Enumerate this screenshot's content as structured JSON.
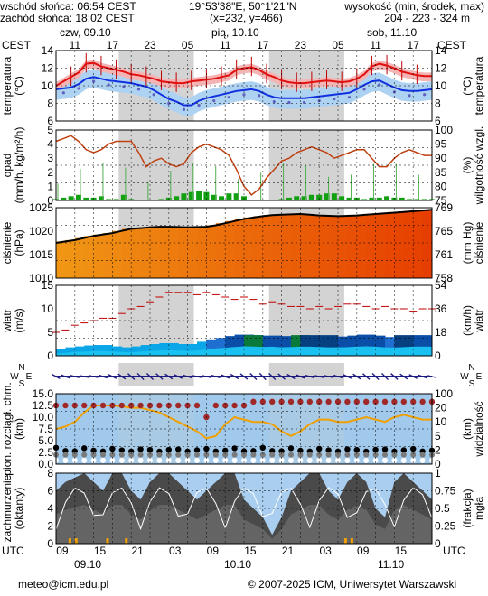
{
  "header": {
    "sunrise": "wschód słońca: 06:54 CEST",
    "sunset": "zachód słońca: 18:02 CEST",
    "coords": "19°53'38\"E, 50°1'21\"N",
    "grid": "(x=232, y=466)",
    "height_title": "wysokość (min, środek, max)",
    "height_values": "204 - 223 - 324 m"
  },
  "timezone_top": "CEST",
  "timezone_bottom": "UTC",
  "days_top": [
    "czw, 09.10",
    "pią, 10.10",
    "sob, 11.10"
  ],
  "days_bottom": [
    "09.10",
    "10.10",
    "11.10"
  ],
  "hours_top": [
    "11",
    "17",
    "23",
    "05",
    "11",
    "17",
    "23",
    "05",
    "11",
    "17"
  ],
  "hours_bottom": [
    "09",
    "15",
    "21",
    "03",
    "09",
    "15",
    "21",
    "03",
    "09",
    "15"
  ],
  "panels": {
    "temp": {
      "left_label": "temperatura",
      "left_unit": "(°C)",
      "right_label": "temperatura",
      "right_unit": "(°C)",
      "ticks": [
        "14",
        "12",
        "10",
        "8",
        "6"
      ]
    },
    "rain": {
      "left_label": "opad",
      "left_unit": "(mm/h, kg/m²/h)",
      "right_label": "wilgotność wzgl.",
      "right_unit": "(%)",
      "left_ticks": [
        "5",
        "4",
        "3",
        "2",
        "1",
        "0"
      ],
      "right_ticks": [
        "100",
        "95",
        "90",
        "85",
        "80",
        "75"
      ]
    },
    "pressure": {
      "left_label": "ciśnienie",
      "left_unit": "(hPa)",
      "right_label": "ciśnienie",
      "right_unit": "(mm Hg)",
      "left_ticks": [
        "1025",
        "1020",
        "1015",
        "1010"
      ],
      "right_ticks": [
        "769",
        "765",
        "761",
        "758"
      ]
    },
    "wind": {
      "left_label": "wiatr",
      "left_unit": "(m/s)",
      "right_label": "wiatr",
      "right_unit": "(km/h)",
      "left_ticks": [
        "15",
        "10",
        "5",
        "0"
      ],
      "right_ticks": [
        "54",
        "36",
        "18",
        "0"
      ]
    },
    "dir": {
      "n": "N",
      "w": "W",
      "e": "E",
      "s": "S"
    },
    "vis": {
      "left_label": "pion. rozciągł. chm.",
      "left_unit": "(km)",
      "right_label": "widzialność",
      "right_unit": "(km)",
      "left_ticks": [
        "15.0",
        "12.5",
        "10.0",
        "7.5",
        "5.0",
        "2.5",
        "0.0"
      ],
      "right_ticks": [
        "100",
        "20",
        "10",
        "5",
        "2",
        "0"
      ]
    },
    "cloud": {
      "left_label": "zachmurzenie",
      "left_unit": "(oktanty)",
      "right_label": "mgła",
      "right_unit": "(frakcja)",
      "left_ticks": [
        "8",
        "6",
        "4",
        "2",
        "0"
      ],
      "right_ticks": [
        "1",
        "0.75",
        "0.5",
        "0.25",
        "0"
      ]
    }
  },
  "footer": {
    "email": "meteo@icm.edu.pl",
    "copyright": "© 2007-2025 ICM, Uniwersytet Warszawski"
  },
  "colors": {
    "night": "#d3d3d3",
    "temp": "#e01010",
    "dew": "#1030e0",
    "humidity": "#c04010",
    "rain": "#10a010",
    "pressure_line": "#000000",
    "sky": "#a9cef0",
    "cloud_dark": "#4a4a4a"
  },
  "chart_data": [
    {
      "type": "line",
      "name": "temperature",
      "ylim": [
        6,
        14
      ],
      "x_hours": 60,
      "series": [
        {
          "name": "temp",
          "values": [
            10.0,
            10.5,
            11.0,
            11.5,
            12.5,
            12.6,
            12.2,
            12.0,
            11.8,
            11.6,
            11.3,
            11.2,
            11.0,
            10.8,
            10.5,
            10.4,
            10.3,
            10.3,
            10.5,
            10.6,
            10.7,
            10.8,
            11.0,
            11.2,
            11.8,
            12.0,
            12.1,
            11.8,
            11.3,
            11.0,
            10.6,
            10.4,
            10.3,
            10.3,
            10.4,
            10.5,
            10.6,
            10.5,
            10.4,
            10.5,
            10.8,
            11.3,
            12.2,
            12.5,
            12.3,
            12.0,
            11.6,
            11.4,
            11.2,
            11.1,
            11.1
          ]
        },
        {
          "name": "dew",
          "values": [
            9.6,
            9.7,
            9.8,
            10.2,
            10.8,
            11.0,
            10.8,
            10.6,
            10.5,
            10.4,
            10.3,
            10.1,
            9.9,
            9.5,
            9.0,
            8.5,
            8.2,
            7.8,
            7.8,
            8.3,
            8.6,
            8.8,
            9.0,
            9.2,
            9.4,
            9.5,
            9.6,
            9.4,
            9.0,
            8.7,
            8.6,
            8.6,
            8.6,
            8.6,
            8.7,
            8.8,
            8.9,
            9.0,
            9.1,
            9.2,
            9.6,
            10.1,
            10.5,
            10.6,
            10.2,
            9.8,
            9.5,
            9.4,
            9.4,
            9.5,
            9.6
          ]
        }
      ]
    },
    {
      "type": "bar",
      "name": "precipitation",
      "ylim": [
        0,
        5
      ],
      "values": [
        0.1,
        0.2,
        0.3,
        0.4,
        0.2,
        0.2,
        0.3,
        0.1,
        0.1,
        0.4,
        0.1,
        0,
        0,
        0,
        0.1,
        0.2,
        0.3,
        0.5,
        0.6,
        0.7,
        0.6,
        0.4,
        0.3,
        0.5,
        0.5,
        0.3,
        0,
        0,
        0,
        0,
        0.1,
        0.2,
        0.3,
        0.3,
        0.4,
        0.4,
        0.5,
        0.5,
        0.3,
        0.2,
        0.2,
        0.1,
        0.2,
        0.2,
        0.3,
        0.2,
        0.2,
        0.1,
        0.1,
        0.1,
        0.1
      ]
    },
    {
      "type": "line",
      "name": "humidity",
      "ylim": [
        75,
        100
      ],
      "values": [
        96,
        97,
        98,
        96,
        93,
        92,
        93,
        95,
        96,
        96,
        96,
        92,
        87,
        89,
        90,
        88,
        87,
        88,
        92,
        94,
        95,
        94,
        93,
        91,
        86,
        80,
        77,
        79,
        83,
        86,
        89,
        90,
        92,
        93,
        94,
        93,
        92,
        90,
        91,
        92,
        93,
        93,
        90,
        87,
        87,
        90,
        92,
        93,
        92,
        91,
        91
      ]
    },
    {
      "type": "area",
      "name": "pressure",
      "ylim": [
        1008,
        1028
      ],
      "values": [
        1018.0,
        1018.4,
        1018.8,
        1019.4,
        1020.0,
        1020.4,
        1020.8,
        1021.4,
        1022.0,
        1022.2,
        1022.4,
        1022.6,
        1022.6,
        1022.5,
        1022.4,
        1022.5,
        1022.6,
        1023.0,
        1023.6,
        1024.2,
        1024.8,
        1025.2,
        1025.6,
        1025.9,
        1026.0,
        1026.1,
        1026.2,
        1026.0,
        1025.8,
        1025.7,
        1025.6,
        1025.7,
        1025.8,
        1026.0,
        1026.2,
        1026.4,
        1026.6,
        1026.8,
        1027.0,
        1027.2,
        1027.4
      ]
    },
    {
      "type": "line",
      "name": "wind",
      "ylim": [
        0,
        15
      ],
      "series": [
        {
          "name": "speed",
          "values": [
            1.0,
            1.4,
            1.8,
            2.0,
            2.2,
            2.3,
            2.0,
            1.8,
            1.6,
            2.0,
            2.3,
            2.5,
            2.7,
            2.5,
            2.3,
            2.5,
            3.0,
            3.5,
            3.8,
            4.2,
            4.5,
            4.4,
            4.2,
            4.3,
            4.0,
            4.2,
            4.3,
            4.3,
            4.2,
            4.0,
            4.0,
            4.1,
            4.3,
            4.5,
            4.3,
            4.0,
            3.9,
            4.1,
            4.3,
            4.4,
            4.3
          ]
        },
        {
          "name": "gusts",
          "values": [
            5,
            5.5,
            6.5,
            7.0,
            7.5,
            8.0,
            8.0,
            9.0,
            10.0,
            10.5,
            11.5,
            12.5,
            13.5,
            13.5,
            13.5,
            13.0,
            13.5,
            13.0,
            12.5,
            12.0,
            12.5,
            12.0,
            11.0,
            11.5,
            11.0,
            10.5,
            10.5,
            10.0,
            10.5,
            10.0,
            10.5,
            11.0,
            11.0,
            10.5,
            10.0,
            10.5,
            10.0,
            10.0,
            9.5,
            10.0,
            10.0
          ]
        }
      ]
    },
    {
      "type": "line",
      "name": "visibility",
      "ylim": [
        0,
        15
      ],
      "values": [
        7.5,
        8.0,
        9.0,
        11.0,
        12.5,
        12.5,
        12.5,
        12.3,
        12.0,
        12.0,
        11.5,
        11.0,
        10.0,
        9.0,
        8.0,
        7.0,
        5.5,
        6.0,
        8.5,
        10.0,
        9.5,
        9.0,
        9.0,
        8.5,
        7.0,
        6.0,
        7.0,
        8.5,
        9.5,
        9.5,
        9.0,
        9.0,
        9.5,
        10.0,
        9.5,
        9.0,
        10.0,
        10.5,
        10.0,
        9.5,
        9.5
      ]
    },
    {
      "type": "area",
      "name": "cloud_cover",
      "ylim": [
        0,
        8
      ],
      "values": [
        6,
        7,
        7.5,
        8,
        7,
        6,
        8,
        8,
        6,
        5,
        7,
        8,
        8,
        7,
        6,
        5,
        6,
        7,
        8,
        8,
        5,
        4,
        3,
        1,
        3,
        6,
        7,
        8,
        8,
        6,
        5,
        7,
        8,
        7,
        4,
        3,
        7,
        8,
        7,
        6,
        5
      ]
    }
  ]
}
